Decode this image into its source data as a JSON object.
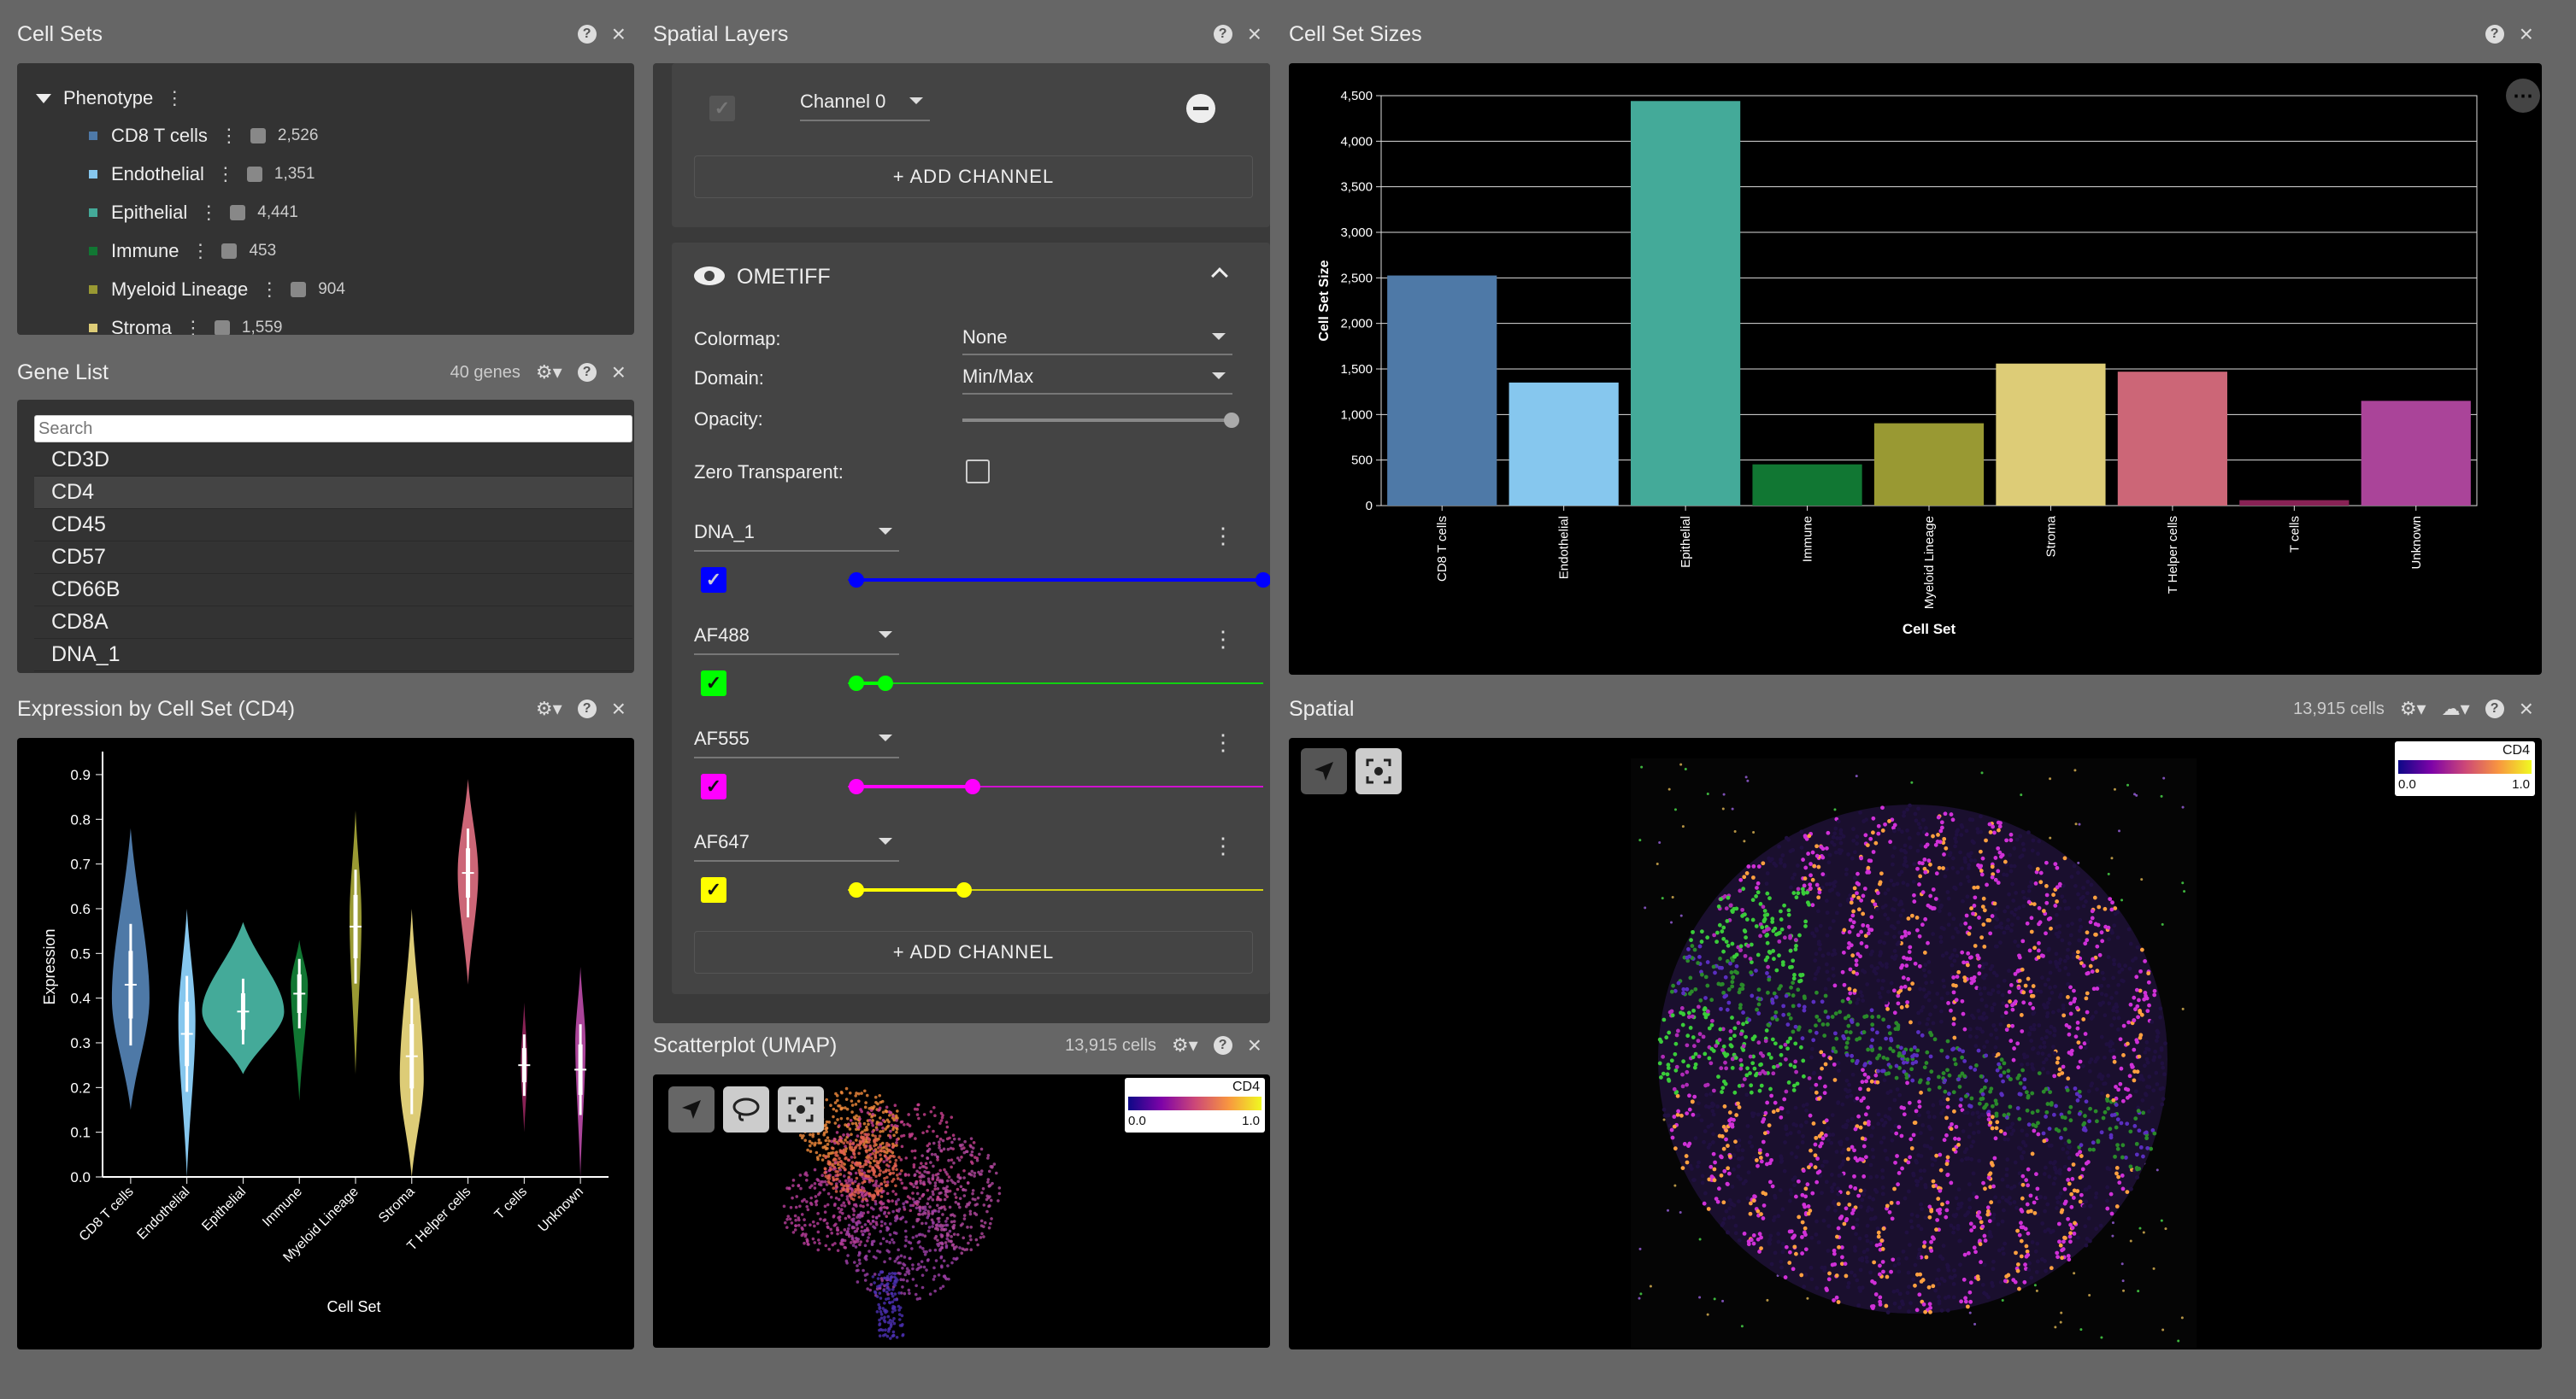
{
  "cell_sets": {
    "title": "Cell Sets",
    "root_label": "Phenotype",
    "items": [
      {
        "label": "CD8 T cells",
        "count": "2,526",
        "color": "#4e79a7"
      },
      {
        "label": "Endothelial",
        "count": "1,351",
        "color": "#86c7ee"
      },
      {
        "label": "Epithelial",
        "count": "4,441",
        "color": "#44aa99"
      },
      {
        "label": "Immune",
        "count": "453",
        "color": "#117733"
      },
      {
        "label": "Myeloid Lineage",
        "count": "904",
        "color": "#999933"
      },
      {
        "label": "Stroma",
        "count": "1,559",
        "color": "#ddcc77"
      }
    ]
  },
  "gene_list": {
    "title": "Gene List",
    "count": "40 genes",
    "search_placeholder": "Search",
    "genes": [
      "CD3D",
      "CD4",
      "CD45",
      "CD57",
      "CD66B",
      "CD8A",
      "DNA_1"
    ],
    "selected": "CD4"
  },
  "expression": {
    "title": "Expression by Cell Set (CD4)",
    "ylabel": "Expression",
    "xlabel": "Cell Set",
    "yticks": [
      "0.0",
      "0.1",
      "0.2",
      "0.3",
      "0.4",
      "0.5",
      "0.6",
      "0.7",
      "0.8",
      "0.9"
    ],
    "categories": [
      "CD8 T cells",
      "Endothelial",
      "Epithelial",
      "Immune",
      "Myeloid Lineage",
      "Stroma",
      "T Helper cells",
      "T cells",
      "Unknown"
    ]
  },
  "spatial_layers": {
    "title": "Spatial Layers",
    "channel0_label": "Channel 0",
    "add_channel_label": "+ ADD CHANNEL",
    "layer_name": "OMETIFF",
    "colormap_label": "Colormap:",
    "colormap_value": "None",
    "domain_label": "Domain:",
    "domain_value": "Min/Max",
    "opacity_label": "Opacity:",
    "zero_transparent_label": "Zero Transparent:",
    "channels": [
      {
        "name": "DNA_1",
        "color": "#0000ff"
      },
      {
        "name": "AF488",
        "color": "#00ff00"
      },
      {
        "name": "AF555",
        "color": "#ff00ff"
      },
      {
        "name": "AF647",
        "color": "#ffff00"
      }
    ]
  },
  "scatterplot": {
    "title": "Scatterplot (UMAP)",
    "count": "13,915 cells",
    "legend_title": "CD4",
    "legend_min": "0.0",
    "legend_max": "1.0"
  },
  "cell_set_sizes": {
    "title": "Cell Set Sizes",
    "ylabel": "Cell Set Size",
    "xlabel": "Cell Set",
    "yticks": [
      "0",
      "500",
      "1,000",
      "1,500",
      "2,000",
      "2,500",
      "3,000",
      "3,500",
      "4,000",
      "4,500"
    ]
  },
  "spatial": {
    "title": "Spatial",
    "count": "13,915 cells",
    "legend_title": "CD4",
    "legend_min": "0.0",
    "legend_max": "1.0"
  },
  "chart_data": {
    "type": "bar",
    "categories": [
      "CD8 T cells",
      "Endothelial",
      "Epithelial",
      "Immune",
      "Myeloid Lineage",
      "Stroma",
      "T Helper cells",
      "T cells",
      "Unknown"
    ],
    "values": [
      2526,
      1351,
      4441,
      453,
      904,
      1559,
      1470,
      60,
      1150
    ],
    "colors": [
      "#4e79a7",
      "#86c7ee",
      "#44aa99",
      "#117733",
      "#999933",
      "#ddcc77",
      "#cc6677",
      "#882255",
      "#aa4499"
    ],
    "xlabel": "Cell Set",
    "ylabel": "Cell Set Size",
    "ylim": [
      0,
      4500
    ],
    "grid": true
  }
}
